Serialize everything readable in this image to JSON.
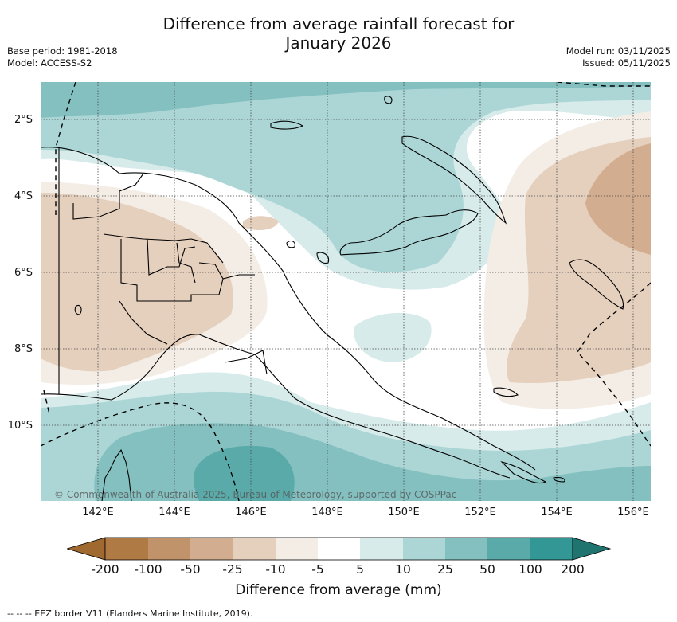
{
  "title_line1": "Difference from average rainfall forecast for",
  "title_line2": "January 2026",
  "base_period": "Base period: 1981-2018",
  "model": "Model: ACCESS-S2",
  "model_run": "Model run: 03/11/2025",
  "issued": "Issued: 05/11/2025",
  "lat_labels": [
    "2°S",
    "4°S",
    "6°S",
    "8°S",
    "10°S"
  ],
  "lon_labels": [
    "142°E",
    "144°E",
    "146°E",
    "148°E",
    "150°E",
    "152°E",
    "154°E",
    "156°E"
  ],
  "copyright": "© Commonwealth of Australia 2025, Bureau of Meteorology, supported by COSPPac",
  "colorbar": {
    "labels": [
      "-200",
      "-100",
      "-50",
      "-25",
      "-10",
      "-5",
      "5",
      "10",
      "25",
      "50",
      "100",
      "200"
    ],
    "colors": [
      "#a0692f",
      "#b07a45",
      "#c0936a",
      "#d3ad8f",
      "#e5cfbd",
      "#f3ede6",
      "#ffffff",
      "#d7ebea",
      "#acd6d6",
      "#84c0c0",
      "#5aaaa9",
      "#329795",
      "#1f7470"
    ],
    "title": "Difference from average (mm)"
  },
  "eez_legend": "--  --  -- EEZ border V11 (Flanders Marine Institute, 2019)."
}
